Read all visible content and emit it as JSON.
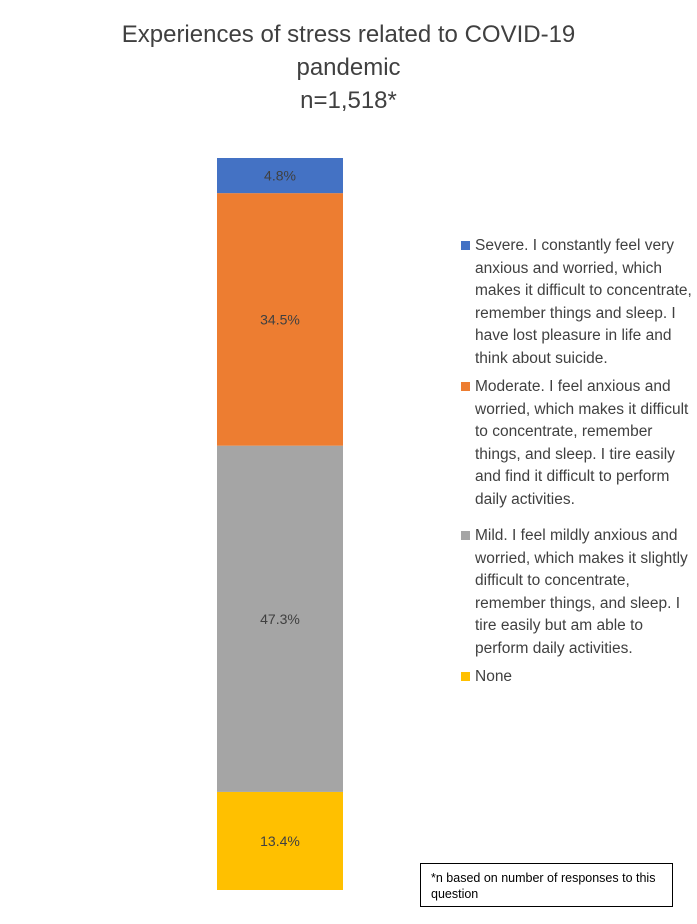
{
  "chart_data": {
    "type": "bar",
    "stacked": true,
    "title": [
      "Experiences of stress related to COVID-19",
      "pandemic",
      "n=1,518*"
    ],
    "categories": [
      ""
    ],
    "series": [
      {
        "name": "None",
        "values": [
          13.4
        ],
        "label": "13.4%",
        "color": "#FFC000"
      },
      {
        "name": "Mild. I feel mildly anxious and worried, which makes it slightly difficult to concentrate, remember things, and sleep. I tire easily but am able to perform daily activities.",
        "values": [
          47.3
        ],
        "label": "47.3%",
        "color": "#A5A5A5"
      },
      {
        "name": "Moderate. I feel anxious and worried, which makes it difficult to concentrate, remember things, and sleep. I tire easily and find it difficult to perform daily activities.",
        "values": [
          34.5
        ],
        "label": "34.5%",
        "color": "#ED7D31"
      },
      {
        "name": "Severe. I constantly feel very anxious and worried, which makes it difficult to concentrate, remember things and sleep. I have lost pleasure in life and think about suicide.",
        "values": [
          4.8
        ],
        "label": "4.8%",
        "color": "#4472C4"
      }
    ],
    "ylim": [
      0,
      100
    ],
    "legend_position": "right",
    "legend_order": [
      3,
      2,
      1,
      0
    ],
    "grid": false,
    "note": "*n based on number of responses to this question"
  }
}
